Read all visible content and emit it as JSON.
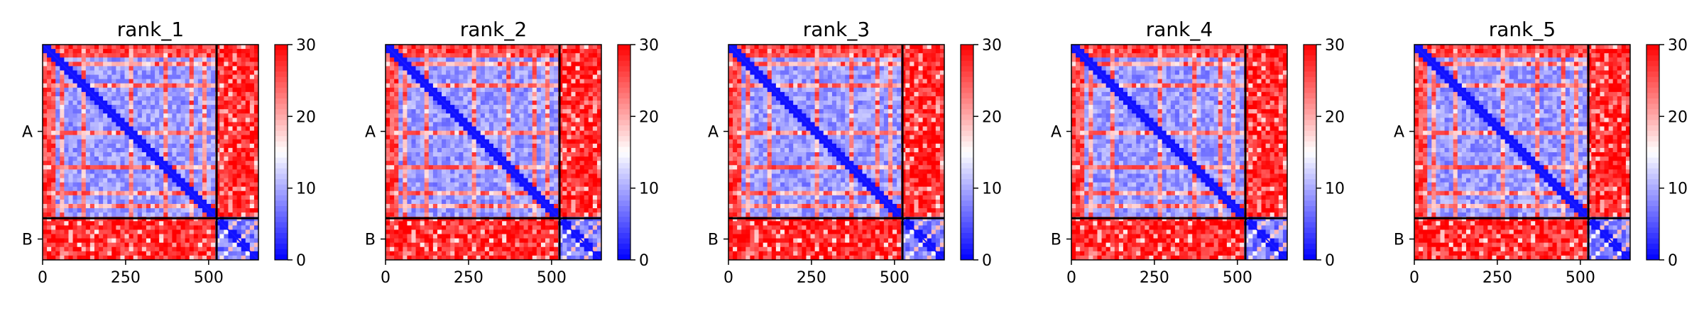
{
  "chart_data": [
    {
      "type": "heatmap",
      "title": "rank_1",
      "x_ticks": [
        0,
        250,
        500
      ],
      "y_tick_labels": [
        "A",
        "B"
      ],
      "chain_boundary": 524,
      "matrix_size": 650,
      "colorbar": {
        "min": 0,
        "max": 30,
        "ticks": [
          0,
          10,
          20,
          30
        ],
        "colors": [
          "#0000ff",
          "#ffffff",
          "#ff0000"
        ]
      }
    },
    {
      "type": "heatmap",
      "title": "rank_2",
      "x_ticks": [
        0,
        250,
        500
      ],
      "y_tick_labels": [
        "A",
        "B"
      ],
      "chain_boundary": 524,
      "matrix_size": 650,
      "colorbar": {
        "min": 0,
        "max": 30,
        "ticks": [
          0,
          10,
          20,
          30
        ],
        "colors": [
          "#0000ff",
          "#ffffff",
          "#ff0000"
        ]
      }
    },
    {
      "type": "heatmap",
      "title": "rank_3",
      "x_ticks": [
        0,
        250,
        500
      ],
      "y_tick_labels": [
        "A",
        "B"
      ],
      "chain_boundary": 524,
      "matrix_size": 650,
      "colorbar": {
        "min": 0,
        "max": 30,
        "ticks": [
          0,
          10,
          20,
          30
        ],
        "colors": [
          "#0000ff",
          "#ffffff",
          "#ff0000"
        ]
      }
    },
    {
      "type": "heatmap",
      "title": "rank_4",
      "x_ticks": [
        0,
        250,
        500
      ],
      "y_tick_labels": [
        "A",
        "B"
      ],
      "chain_boundary": 524,
      "matrix_size": 650,
      "colorbar": {
        "min": 0,
        "max": 30,
        "ticks": [
          0,
          10,
          20,
          30
        ],
        "colors": [
          "#0000ff",
          "#ffffff",
          "#ff0000"
        ]
      }
    },
    {
      "type": "heatmap",
      "title": "rank_5",
      "x_ticks": [
        0,
        250,
        500
      ],
      "y_tick_labels": [
        "A",
        "B"
      ],
      "chain_boundary": 524,
      "matrix_size": 650,
      "colorbar": {
        "min": 0,
        "max": 30,
        "ticks": [
          0,
          10,
          20,
          30
        ],
        "colors": [
          "#0000ff",
          "#ffffff",
          "#ff0000"
        ]
      }
    }
  ]
}
